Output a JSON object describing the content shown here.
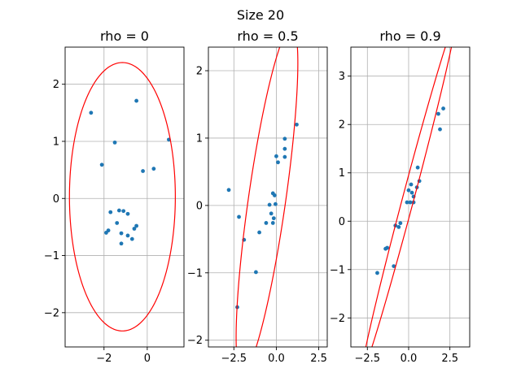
{
  "figure": {
    "suptitle": "Size 20"
  },
  "chart_data": [
    {
      "type": "scatter",
      "title": "rho = 0",
      "xlabel": "",
      "ylabel": "",
      "xlim": [
        -3.8,
        1.7
      ],
      "ylim": [
        -2.6,
        2.65
      ],
      "xticks": [
        -2,
        0
      ],
      "xtick_labels": [
        "−2",
        "0"
      ],
      "yticks": [
        -2,
        -1,
        0,
        1,
        2
      ],
      "ytick_labels": [
        "−2",
        "−1",
        "0",
        "1",
        "2"
      ],
      "grid": true,
      "marker_color": "#1f77b4",
      "ellipse": {
        "color": "#ff0000",
        "cx": -1.15,
        "cy": 0.03,
        "rx": 2.45,
        "ry": 2.35,
        "angle_deg": 0
      },
      "x": [
        -2.6,
        -1.5,
        -0.5,
        1.0,
        -2.1,
        -0.2,
        0.3,
        -1.3,
        -1.1,
        -0.9,
        -1.7,
        -1.4,
        -0.5,
        -0.6,
        -1.8,
        -1.2,
        -1.9,
        -0.9,
        -0.7,
        -1.2
      ],
      "y": [
        1.5,
        0.98,
        1.71,
        1.03,
        0.59,
        0.48,
        0.52,
        -0.21,
        -0.22,
        -0.27,
        -0.24,
        -0.43,
        -0.48,
        -0.53,
        -0.56,
        -0.61,
        -0.6,
        -0.65,
        -0.71,
        -0.79
      ]
    },
    {
      "type": "scatter",
      "title": "rho = 0.5",
      "xlabel": "",
      "ylabel": "",
      "xlim": [
        -4.0,
        3.0
      ],
      "ylim": [
        -2.1,
        2.35
      ],
      "xticks": [
        -2.5,
        0.0,
        2.5
      ],
      "xtick_labels": [
        "−2.5",
        "0.0",
        "2.5"
      ],
      "yticks": [
        -2,
        -1,
        0,
        1,
        2
      ],
      "ytick_labels": [
        "−2",
        "−1",
        "0",
        "1",
        "2"
      ],
      "grid": true,
      "marker_color": "#1f77b4",
      "ellipse": {
        "color": "#ff0000",
        "cx": -0.55,
        "cy": 0.08,
        "rx": 3.0,
        "ry": 0.95,
        "angle_deg": 57
      },
      "x": [
        -2.8,
        -2.2,
        -1.9,
        -1.2,
        -1.0,
        -0.6,
        -0.4,
        -0.3,
        -0.2,
        -0.1,
        -0.15,
        -0.05,
        0.0,
        0.1,
        0.5,
        0.5,
        0.5,
        1.2,
        -2.3,
        -0.2
      ],
      "y": [
        0.23,
        -0.17,
        -0.51,
        -0.99,
        -0.4,
        -0.26,
        0.01,
        -0.12,
        0.18,
        0.15,
        -0.19,
        0.02,
        0.73,
        0.64,
        0.99,
        0.84,
        0.72,
        1.2,
        -1.51,
        -0.26
      ]
    },
    {
      "type": "scatter",
      "title": "rho = 0.9",
      "xlabel": "",
      "ylabel": "",
      "xlim": [
        -3.5,
        3.7
      ],
      "ylim": [
        -2.6,
        3.6
      ],
      "xticks": [
        -2.5,
        0.0,
        2.5
      ],
      "xtick_labels": [
        "−2.5",
        "0.0",
        "2.5"
      ],
      "yticks": [
        -2,
        -1,
        0,
        1,
        2,
        3
      ],
      "ytick_labels": [
        "−2",
        "−1",
        "0",
        "1",
        "2",
        "3"
      ],
      "grid": true,
      "marker_color": "#1f77b4",
      "ellipse": {
        "color": "#ff0000",
        "cx": 0.0,
        "cy": 0.5,
        "rx": 4.6,
        "ry": 0.28,
        "angle_deg": 52
      },
      "x": [
        -1.9,
        -1.4,
        -1.3,
        -0.9,
        -0.8,
        -0.6,
        -0.5,
        -0.1,
        0.0,
        0.1,
        0.15,
        0.2,
        0.3,
        0.3,
        0.5,
        0.55,
        0.65,
        1.8,
        1.9,
        2.1
      ],
      "y": [
        -1.07,
        -0.57,
        -0.55,
        -0.93,
        -0.09,
        -0.12,
        -0.04,
        0.39,
        0.64,
        0.39,
        0.76,
        0.59,
        0.51,
        0.39,
        0.7,
        1.11,
        0.83,
        2.22,
        1.9,
        2.33
      ]
    }
  ]
}
